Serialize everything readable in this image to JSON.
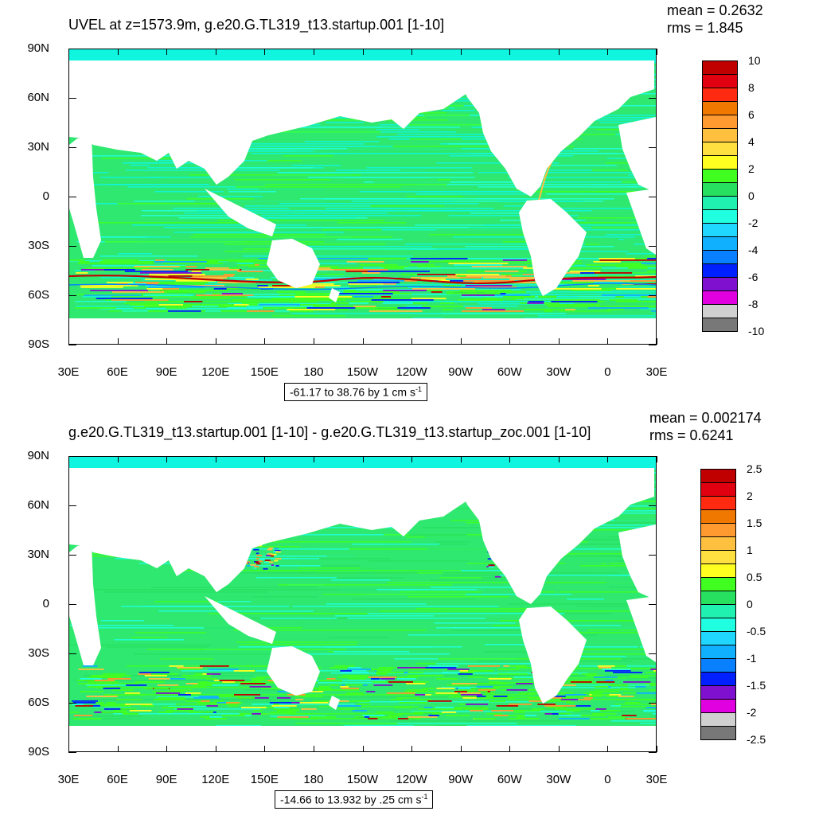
{
  "panels": [
    {
      "title": "UVEL at z=1573.9m, g.e20.G.TL319_t13.startup.001 [1-10]",
      "mean": "mean = 0.2632",
      "rms": "rms = 1.845",
      "range_text": "-61.17 to 38.76 by 1 cm s",
      "range_unit_exp": "-1",
      "legend_labels": [
        "10",
        "8",
        "6",
        "4",
        "2",
        "0",
        "-2",
        "-4",
        "-6",
        "-8",
        "-10"
      ]
    },
    {
      "title": "g.e20.G.TL319_t13.startup.001 [1-10] - g.e20.G.TL319_t13.startup_zoc.001 [1-10]",
      "mean": "mean = 0.002174",
      "rms": "rms = 0.6241",
      "range_text": "-14.66 to 13.932 by .25 cm s",
      "range_unit_exp": "-1",
      "legend_labels": [
        "2.5",
        "2",
        "1.5",
        "1",
        "0.5",
        "0",
        "-0.5",
        "-1",
        "-1.5",
        "-2",
        "-2.5"
      ]
    }
  ],
  "axes": {
    "y_labels": [
      "90N",
      "60N",
      "30N",
      "0",
      "30S",
      "60S",
      "90S"
    ],
    "x_labels": [
      "30E",
      "60E",
      "90E",
      "120E",
      "150E",
      "180",
      "150W",
      "120W",
      "90W",
      "60W",
      "30W",
      "0",
      "30E"
    ]
  },
  "colors": {
    "colorbar": [
      "#c00000",
      "#e00010",
      "#ff2a10",
      "#f07800",
      "#ff9a30",
      "#ffc040",
      "#ffe040",
      "#ffff20",
      "#40ff20",
      "#28e060",
      "#20f0b0",
      "#20ffe0",
      "#20d8ff",
      "#10b0ff",
      "#0880ff",
      "#0020ff",
      "#8010d0",
      "#e000e0",
      "#d0d0d0",
      "#787878"
    ],
    "ocean_base": "#2ee870",
    "cyan_band": "#10f5e0",
    "land": "#ffffff"
  },
  "legend_icon": "filled-contour-colorbar"
}
